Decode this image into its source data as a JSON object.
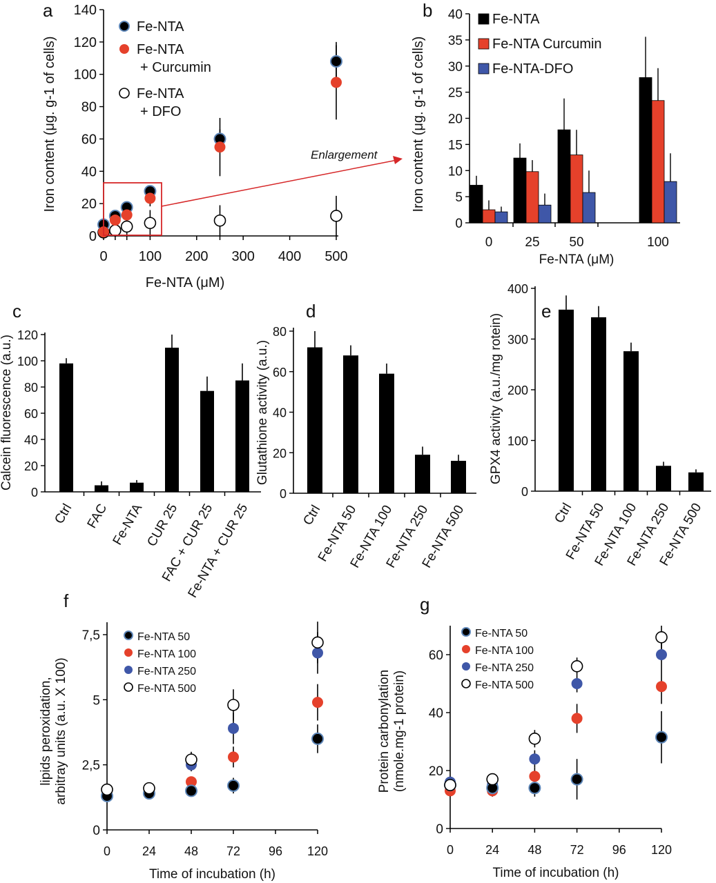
{
  "colors": {
    "black": "#000000",
    "red": "#e5412b",
    "blue": "#3f57a8",
    "white": "#ffffff",
    "enlargement": "#d62728"
  },
  "chart_data": [
    {
      "panel": "a",
      "type": "scatter",
      "xlabel": "Fe-NTA (μM)",
      "ylabel": "Iron content  (μg. g-1 of cells)",
      "xlim": [
        0,
        500
      ],
      "ylim": [
        0,
        140
      ],
      "xticks": [
        0,
        100,
        200,
        300,
        400,
        500
      ],
      "yticks": [
        0,
        20,
        40,
        60,
        80,
        100,
        120,
        140
      ],
      "legend": "top-left",
      "x": [
        0,
        25,
        50,
        100,
        250,
        500
      ],
      "series": [
        {
          "name": "Fe-NTA",
          "legend_lines": [
            "Fe-NTA"
          ],
          "marker": "black",
          "values": [
            7,
            12.4,
            17.7,
            27.7,
            60,
            108
          ],
          "err": [
            2,
            3,
            3,
            3,
            6,
            12
          ]
        },
        {
          "name": "Fe-NTA + Curcumin",
          "legend_lines": [
            "Fe-NTA",
            "+ Curcumin"
          ],
          "marker": "red",
          "values": [
            2.5,
            9.8,
            13,
            23.3,
            55,
            95
          ],
          "err": [
            2,
            2,
            3,
            5,
            18,
            23
          ]
        },
        {
          "name": "Fe-NTA + DFO",
          "legend_lines": [
            "Fe-NTA",
            "+ DFO"
          ],
          "marker": "white",
          "values": [
            2.2,
            3.4,
            5.8,
            8,
            9.5,
            12.4
          ],
          "err": [
            2,
            3.4,
            5.8,
            8,
            9.5,
            12.4
          ]
        }
      ],
      "annotation": "Enlargement"
    },
    {
      "panel": "b",
      "type": "bar",
      "xlabel": "Fe-NTA (μM)",
      "ylabel": "Iron content  (μg. g-1 of cells)",
      "ylim": [
        0,
        40
      ],
      "yticks": [
        0,
        5,
        10,
        15,
        20,
        25,
        30,
        35,
        40
      ],
      "legend": "top-left",
      "categories": [
        "0",
        "25",
        "50",
        "100"
      ],
      "series": [
        {
          "name": "Fe-NTA",
          "color": "black",
          "values": [
            7.2,
            12.4,
            17.8,
            27.8
          ],
          "err": [
            1.8,
            2.8,
            6,
            7.8
          ]
        },
        {
          "name": "Fe-NTA Curcumin",
          "color": "red",
          "values": [
            2.5,
            9.8,
            13,
            23.4
          ],
          "err": [
            1.8,
            2.2,
            4.8,
            6.2
          ]
        },
        {
          "name": "Fe-NTA-DFO",
          "color": "blue",
          "values": [
            2.1,
            3.4,
            5.8,
            7.9
          ],
          "err": [
            1,
            2.2,
            4.2,
            5.4
          ]
        }
      ]
    },
    {
      "panel": "c",
      "type": "bar",
      "ylabel": "Calcein fluorescence (a.u.)",
      "ylim": [
        0,
        120
      ],
      "yticks": [
        0,
        20,
        40,
        60,
        80,
        100,
        120
      ],
      "categories": [
        "Ctrl",
        "FAC",
        "Fe-NTA",
        "CUR 25",
        "FAC + CUR 25",
        "Fe-NTA + CUR 25"
      ],
      "values": [
        98,
        5,
        7,
        110,
        77,
        85
      ],
      "err": [
        4,
        3,
        2,
        10,
        11,
        13
      ]
    },
    {
      "panel": "d",
      "type": "bar",
      "ylabel": "Glutathione activity (a.u.)",
      "ylim": [
        0,
        80
      ],
      "yticks": [
        0,
        20,
        40,
        60,
        80
      ],
      "categories": [
        "Ctrl",
        "Fe-NTA 50",
        "Fe-NTA 100",
        "Fe-NTA 250",
        "Fe-NTA 500"
      ],
      "values": [
        72,
        68,
        59,
        19,
        16
      ],
      "err": [
        8,
        5,
        5,
        4,
        3
      ]
    },
    {
      "panel": "e",
      "type": "bar",
      "ylabel": "GPX4 activity (a.u./mg rotein)",
      "ylim": [
        0,
        400
      ],
      "yticks": [
        0,
        100,
        200,
        300,
        400
      ],
      "categories": [
        "Ctrl",
        "Fe-NTA 50",
        "Fe-NTA 100",
        "Fe-NTA 250",
        "Fe-NTA 500"
      ],
      "values": [
        358,
        343,
        276,
        50,
        37
      ],
      "err": [
        28,
        22,
        17,
        8,
        6
      ]
    },
    {
      "panel": "f",
      "type": "scatter",
      "xlabel": "Time of incubation (h)",
      "ylabel_lines": [
        "lipids peroxidation,",
        "arbitray units (a.u. X 100)"
      ],
      "xlim": [
        0,
        120
      ],
      "ylim": [
        0,
        8
      ],
      "xticks": [
        0,
        24,
        48,
        72,
        96,
        120
      ],
      "yticks": [
        0,
        2.5,
        5,
        7.5
      ],
      "ytick_labels": [
        "0",
        "2,5",
        "5",
        "7,5"
      ],
      "legend": "top-left",
      "x": [
        0,
        24,
        48,
        72,
        120
      ],
      "series": [
        {
          "name": "Fe-NTA 50",
          "marker": "black",
          "values": [
            1.3,
            1.4,
            1.5,
            1.7,
            3.5
          ],
          "err": [
            0.1,
            0.1,
            0.15,
            0.3,
            0.55
          ]
        },
        {
          "name": "Fe-NTA 100",
          "marker": "red",
          "values": [
            1.3,
            1.5,
            1.85,
            2.8,
            4.9
          ],
          "err": [
            0.1,
            0.1,
            0.15,
            0.4,
            0.7
          ]
        },
        {
          "name": "Fe-NTA 250",
          "marker": "blue",
          "values": [
            1.3,
            1.45,
            2.5,
            3.9,
            6.8
          ],
          "err": [
            0.1,
            0.1,
            0.25,
            0.6,
            0.8
          ]
        },
        {
          "name": "Fe-NTA 500",
          "marker": "white",
          "values": [
            1.55,
            1.6,
            2.7,
            4.8,
            7.2
          ],
          "err": [
            0.1,
            0.1,
            0.3,
            0.6,
            0.8
          ]
        }
      ]
    },
    {
      "panel": "g",
      "type": "scatter",
      "xlabel": "Time of incubation (h)",
      "ylabel_lines": [
        "Protein carbonylation",
        "(nmole.mg-1 protein)"
      ],
      "xlim": [
        0,
        120
      ],
      "ylim": [
        0,
        70
      ],
      "xticks": [
        0,
        24,
        48,
        72,
        96,
        120
      ],
      "yticks": [
        0,
        20,
        40,
        60
      ],
      "legend": "top-left",
      "x": [
        0,
        24,
        48,
        72,
        120
      ],
      "series": [
        {
          "name": "Fe-NTA 50",
          "marker": "black",
          "values": [
            15,
            14,
            14,
            17,
            31.5
          ],
          "err": [
            2,
            2,
            3,
            7,
            9
          ]
        },
        {
          "name": "Fe-NTA 100",
          "marker": "red",
          "values": [
            13,
            13,
            18,
            38,
            49
          ],
          "err": [
            2,
            2,
            3,
            5,
            6
          ]
        },
        {
          "name": "Fe-NTA 250",
          "marker": "blue",
          "values": [
            16,
            15,
            24,
            50,
            60
          ],
          "err": [
            2,
            2,
            3,
            3,
            5
          ]
        },
        {
          "name": "Fe-NTA 500",
          "marker": "white",
          "values": [
            15,
            17,
            31,
            56,
            66
          ],
          "err": [
            2,
            2,
            3,
            3,
            4
          ]
        }
      ]
    }
  ]
}
